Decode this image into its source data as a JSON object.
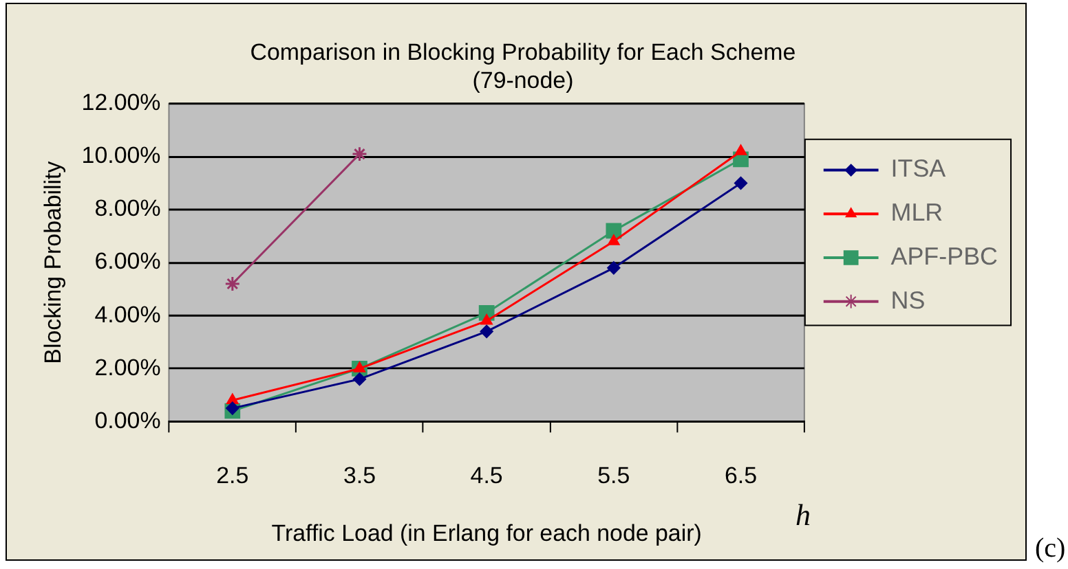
{
  "chart_data": {
    "type": "line",
    "title": "Comparison in Blocking Probability for Each Scheme\n(79-node)",
    "xlabel": "Traffic Load (in Erlang for each node pair)",
    "ylabel": "Blocking Probability",
    "categories": [
      "2.5",
      "3.5",
      "4.5",
      "5.5",
      "6.5"
    ],
    "series": [
      {
        "name": "ITSA",
        "color": "#000080",
        "marker": "diamond",
        "values": [
          0.5,
          1.6,
          3.4,
          5.8,
          9.0
        ]
      },
      {
        "name": "MLR",
        "color": "#ff0000",
        "marker": "triangle",
        "values": [
          0.8,
          2.0,
          3.8,
          6.8,
          10.2
        ]
      },
      {
        "name": "APF-PBC",
        "color": "#339966",
        "marker": "square",
        "values": [
          0.4,
          2.0,
          4.1,
          7.2,
          9.9
        ]
      },
      {
        "name": "NS",
        "color": "#993366",
        "marker": "cross",
        "values": [
          5.2,
          10.1,
          null,
          null,
          null
        ]
      }
    ],
    "ylim": [
      0,
      12
    ],
    "yticks": [
      {
        "value": 0,
        "label": "0.00%"
      },
      {
        "value": 2,
        "label": "2.00%"
      },
      {
        "value": 4,
        "label": "4.00%"
      },
      {
        "value": 6,
        "label": "6.00%"
      },
      {
        "value": 8,
        "label": "8.00%"
      },
      {
        "value": 10,
        "label": "10.00%"
      },
      {
        "value": 12,
        "label": "12.00%"
      }
    ],
    "grid": "y",
    "legend": "right",
    "line_style": "solid",
    "annotations": [
      "h",
      "(c)"
    ]
  }
}
